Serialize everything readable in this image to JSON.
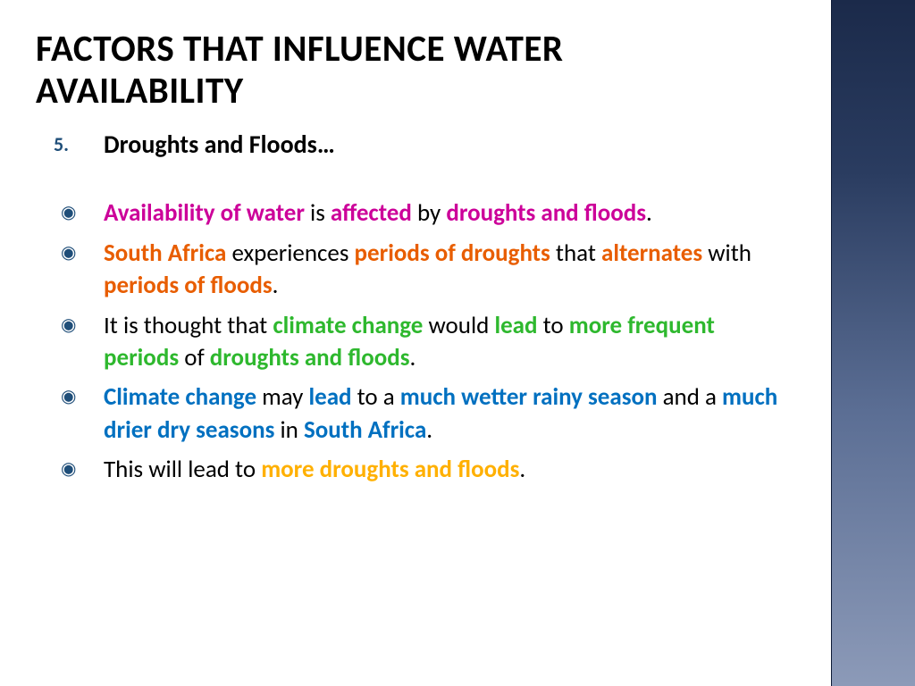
{
  "title": "FACTORS THAT INFLUENCE WATER AVAILABILITY",
  "numbered": {
    "num": "5.",
    "text": "Droughts and Floods…"
  },
  "colors": {
    "magenta": "#cc0099",
    "orange": "#e85d00",
    "green": "#2eb82e",
    "blue": "#0070c0",
    "amber": "#ffb000",
    "black": "#000000",
    "title_color": "#000000",
    "num_color": "#1f4e79",
    "marker_color": "#1f4e79",
    "side_gradient_top": "#1b2a4a",
    "side_gradient_bottom": "#8c9ab8",
    "background": "#ffffff"
  },
  "bullets": [
    {
      "runs": [
        {
          "t": "Availability of water ",
          "c": "magenta",
          "b": true
        },
        {
          "t": "is ",
          "c": "black",
          "b": false
        },
        {
          "t": "affected ",
          "c": "magenta",
          "b": true
        },
        {
          "t": "by ",
          "c": "black",
          "b": false
        },
        {
          "t": "droughts and floods",
          "c": "magenta",
          "b": true
        },
        {
          "t": ".",
          "c": "black",
          "b": false
        }
      ]
    },
    {
      "runs": [
        {
          "t": "South Africa ",
          "c": "orange",
          "b": true
        },
        {
          "t": "experiences ",
          "c": "black",
          "b": false
        },
        {
          "t": "periods of droughts ",
          "c": "orange",
          "b": true
        },
        {
          "t": "that ",
          "c": "black",
          "b": false
        },
        {
          "t": "alternates ",
          "c": "orange",
          "b": true
        },
        {
          "t": "with ",
          "c": "black",
          "b": false
        },
        {
          "t": "periods of floods",
          "c": "orange",
          "b": true
        },
        {
          "t": ".",
          "c": "black",
          "b": false
        }
      ]
    },
    {
      "runs": [
        {
          "t": "It is thought that ",
          "c": "black",
          "b": false
        },
        {
          "t": "climate change ",
          "c": "green",
          "b": true
        },
        {
          "t": "would ",
          "c": "black",
          "b": false
        },
        {
          "t": "lead ",
          "c": "green",
          "b": true
        },
        {
          "t": "to ",
          "c": "black",
          "b": false
        },
        {
          "t": "more frequent periods ",
          "c": "green",
          "b": true
        },
        {
          "t": "of ",
          "c": "black",
          "b": false
        },
        {
          "t": "droughts and floods",
          "c": "green",
          "b": true
        },
        {
          "t": ".",
          "c": "black",
          "b": false
        }
      ]
    },
    {
      "runs": [
        {
          "t": "Climate change ",
          "c": "blue",
          "b": true
        },
        {
          "t": "may ",
          "c": "black",
          "b": false
        },
        {
          "t": "lead ",
          "c": "blue",
          "b": true
        },
        {
          "t": "to a ",
          "c": "black",
          "b": false
        },
        {
          "t": "much wetter rainy season ",
          "c": "blue",
          "b": true
        },
        {
          "t": "and a ",
          "c": "black",
          "b": false
        },
        {
          "t": "much drier dry seasons ",
          "c": "blue",
          "b": true
        },
        {
          "t": "in ",
          "c": "black",
          "b": false
        },
        {
          "t": "South Africa",
          "c": "blue",
          "b": true
        },
        {
          "t": ".",
          "c": "black",
          "b": false
        }
      ]
    },
    {
      "runs": [
        {
          "t": "This will lead to ",
          "c": "black",
          "b": false
        },
        {
          "t": "more droughts and floods",
          "c": "amber",
          "b": true
        },
        {
          "t": ".",
          "c": "black",
          "b": false
        }
      ]
    }
  ]
}
